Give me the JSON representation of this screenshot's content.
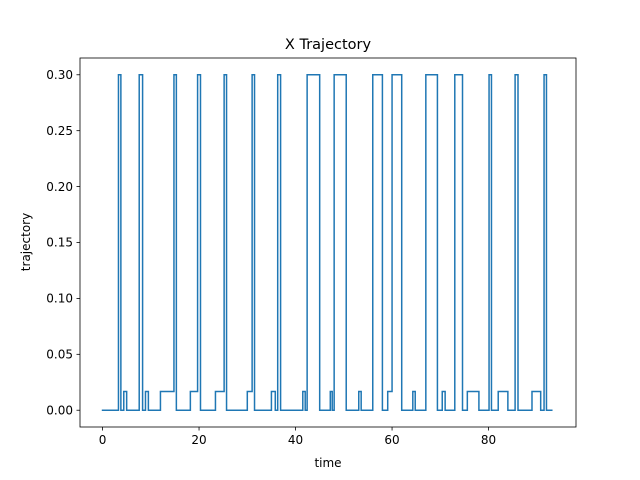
{
  "chart_data": {
    "type": "line",
    "title": "X Trajectory",
    "xlabel": "time",
    "ylabel": "trajectory",
    "xlim": [
      -4.67,
      98.12
    ],
    "ylim": [
      -0.015,
      0.315
    ],
    "xticks": [
      0,
      20,
      40,
      60,
      80
    ],
    "xtick_labels": [
      "0",
      "20",
      "40",
      "60",
      "80"
    ],
    "yticks": [
      0.0,
      0.05,
      0.1,
      0.15,
      0.2,
      0.25,
      0.3
    ],
    "ytick_labels": [
      "0.00",
      "0.05",
      "0.10",
      "0.15",
      "0.20",
      "0.25",
      "0.30"
    ],
    "grid": false,
    "line_color": "#1f77b4",
    "series": [
      {
        "step": "post",
        "x": [
          0,
          3.3,
          3.8,
          4.4,
          4.6,
          5.0,
          7.6,
          8.3,
          8.9,
          9.5,
          10.0,
          12.0,
          14.8,
          15.3,
          16.0,
          17.0,
          18.2,
          19.7,
          20.3,
          20.8,
          22.3,
          23.4,
          25.2,
          25.7,
          26.3,
          28.0,
          30.0,
          31.0,
          31.5,
          32.0,
          34.0,
          35.0,
          35.8,
          36.3,
          36.9,
          39.0,
          41.5,
          42.0,
          42.4,
          45.0,
          46.8,
          47.2,
          47.6,
          48.0,
          50.5,
          52.6,
          53.1,
          53.6,
          56.0,
          58.0,
          58.5,
          59.1,
          60.0,
          62.0,
          63.8,
          64.3,
          64.8,
          67.0,
          69.4,
          69.9,
          70.4,
          71.0,
          73.0,
          74.6,
          75.1,
          75.6,
          78.0,
          80.1,
          80.6,
          81.2,
          82.0,
          84.0,
          85.5,
          86.1,
          86.6,
          89.0,
          90.8,
          91.5,
          92.0,
          93.1
        ],
        "y": [
          0,
          0.3,
          0,
          0.0167,
          0.0167,
          0,
          0.3,
          0,
          0.0167,
          0,
          0,
          0.0167,
          0.3,
          0,
          0,
          0,
          0.0167,
          0.3,
          0,
          0,
          0,
          0.0167,
          0.3,
          0,
          0,
          0,
          0.0167,
          0.3,
          0,
          0,
          0,
          0.0167,
          0,
          0.3,
          0,
          0,
          0.0167,
          0,
          0.3,
          0,
          0,
          0.0167,
          0,
          0.3,
          0,
          0,
          0.0167,
          0,
          0.3,
          0,
          0,
          0.0167,
          0.3,
          0,
          0,
          0.0167,
          0,
          0.3,
          0,
          0,
          0.0167,
          0,
          0.3,
          0,
          0,
          0.0167,
          0,
          0.3,
          0,
          0,
          0.0167,
          0,
          0.3,
          0,
          0,
          0.0167,
          0,
          0.3,
          0,
          0
        ]
      }
    ]
  }
}
